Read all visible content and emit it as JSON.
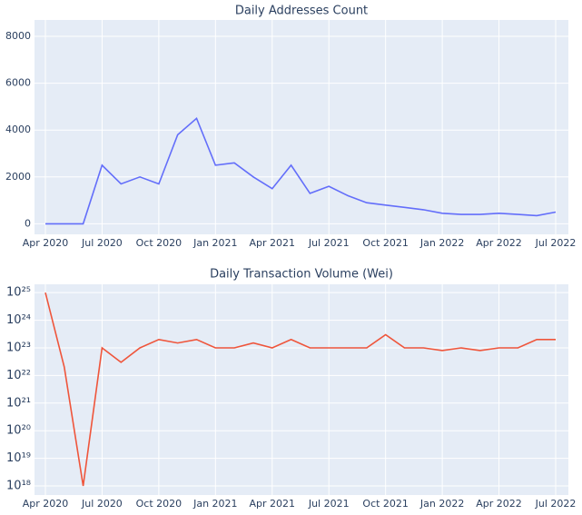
{
  "chart_data": [
    {
      "type": "line",
      "title": "Daily Addresses Count",
      "x": [
        "2020-04",
        "2020-05",
        "2020-06",
        "2020-07",
        "2020-08",
        "2020-09",
        "2020-10",
        "2020-11",
        "2020-12",
        "2021-01",
        "2021-02",
        "2021-03",
        "2021-04",
        "2021-05",
        "2021-06",
        "2021-07",
        "2021-08",
        "2021-09",
        "2021-10",
        "2021-11",
        "2021-12",
        "2022-01",
        "2022-02",
        "2022-03",
        "2022-04",
        "2022-05",
        "2022-06",
        "2022-07"
      ],
      "series": [
        {
          "name": "Daily Addresses Count",
          "color": "#636efa",
          "values": [
            0,
            0,
            0,
            2500,
            1700,
            2000,
            1700,
            3800,
            4500,
            2500,
            2600,
            2000,
            1500,
            2500,
            1300,
            1600,
            1200,
            900,
            800,
            700,
            600,
            450,
            400,
            400,
            450,
            400,
            350,
            500
          ]
        }
      ],
      "xlim": [
        "2020-04",
        "2022-07"
      ],
      "xticks": [
        {
          "value": "2020-04",
          "label": "Apr 2020"
        },
        {
          "value": "2020-07",
          "label": "Jul 2020"
        },
        {
          "value": "2020-10",
          "label": "Oct 2020"
        },
        {
          "value": "2021-01",
          "label": "Jan 2021"
        },
        {
          "value": "2021-04",
          "label": "Apr 2021"
        },
        {
          "value": "2021-07",
          "label": "Jul 2021"
        },
        {
          "value": "2021-10",
          "label": "Oct 2021"
        },
        {
          "value": "2022-01",
          "label": "Jan 2022"
        },
        {
          "value": "2022-04",
          "label": "Apr 2022"
        },
        {
          "value": "2022-07",
          "label": "Jul 2022"
        }
      ],
      "ylim": [
        -450,
        8700
      ],
      "yticks": [
        0,
        2000,
        4000,
        6000,
        8000
      ],
      "grid": true
    },
    {
      "type": "line",
      "title": "Daily Transaction Volume (Wei)",
      "x": [
        "2020-04",
        "2020-05",
        "2020-06",
        "2020-07",
        "2020-08",
        "2020-09",
        "2020-10",
        "2020-11",
        "2020-12",
        "2021-01",
        "2021-02",
        "2021-03",
        "2021-04",
        "2021-05",
        "2021-06",
        "2021-07",
        "2021-08",
        "2021-09",
        "2021-10",
        "2021-11",
        "2021-12",
        "2022-01",
        "2022-02",
        "2022-03",
        "2022-04",
        "2022-05",
        "2022-06",
        "2022-07"
      ],
      "series": [
        {
          "name": "Daily Transaction Volume (Wei)",
          "color": "#ef553b",
          "values": [
            1e+25,
            2e+22,
            1e+18,
            1e+23,
            3e+22,
            1e+23,
            2e+23,
            1.5e+23,
            2e+23,
            1e+23,
            1e+23,
            1.5e+23,
            1e+23,
            2e+23,
            1e+23,
            1e+23,
            1e+23,
            1e+23,
            3e+23,
            1e+23,
            1e+23,
            8e+22,
            1e+23,
            8e+22,
            1e+23,
            1e+23,
            2e+23,
            2e+23
          ]
        }
      ],
      "log_y": true,
      "xlim": [
        "2020-04",
        "2022-07"
      ],
      "xticks": [
        {
          "value": "2020-04",
          "label": "Apr 2020"
        },
        {
          "value": "2020-07",
          "label": "Jul 2020"
        },
        {
          "value": "2020-10",
          "label": "Oct 2020"
        },
        {
          "value": "2021-01",
          "label": "Jan 2021"
        },
        {
          "value": "2021-04",
          "label": "Apr 2021"
        },
        {
          "value": "2021-07",
          "label": "Jul 2021"
        },
        {
          "value": "2021-10",
          "label": "Oct 2021"
        },
        {
          "value": "2022-01",
          "label": "Jan 2022"
        },
        {
          "value": "2022-04",
          "label": "Apr 2022"
        },
        {
          "value": "2022-07",
          "label": "Jul 2022"
        }
      ],
      "ylim": [
        4.7e+17,
        2e+25
      ],
      "yticks": [
        {
          "value": 1e+18,
          "label": "10¹⁸"
        },
        {
          "value": 1e+19,
          "label": "10¹⁹"
        },
        {
          "value": 1e+20,
          "label": "10²⁰"
        },
        {
          "value": 1e+21,
          "label": "10²¹"
        },
        {
          "value": 1e+22,
          "label": "10²²"
        },
        {
          "value": 1e+23,
          "label": "10²³"
        },
        {
          "value": 1e+24,
          "label": "10²⁴"
        },
        {
          "value": 1e+25,
          "label": "10²⁵"
        }
      ],
      "grid": true
    }
  ]
}
